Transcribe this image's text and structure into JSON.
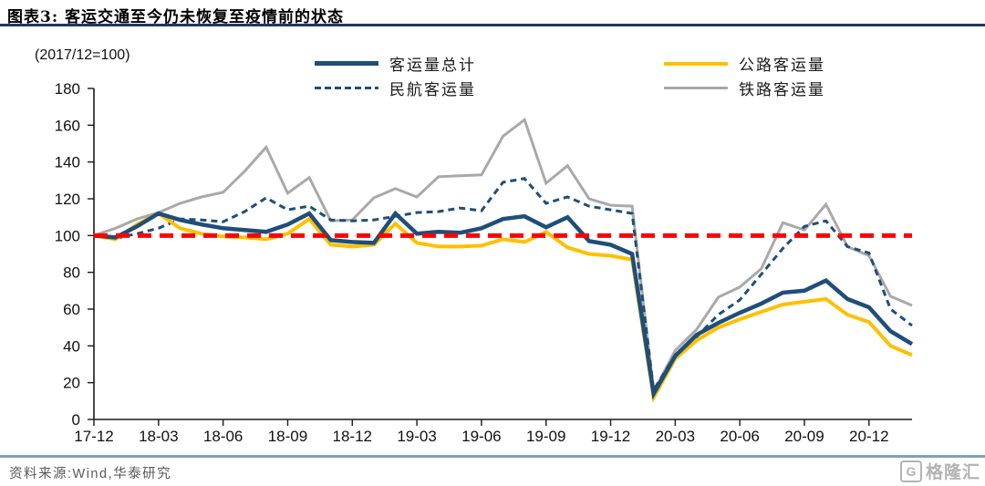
{
  "header": {
    "title": "图表3:  客运交通至今仍未恢复至疫情前的状态"
  },
  "chart_data": {
    "type": "line",
    "title": "客运交通至今仍未恢复至疫情前的状态",
    "index_note": "(2017/12=100)",
    "ylim": [
      0,
      180
    ],
    "y_ticks": [
      0,
      20,
      40,
      60,
      80,
      100,
      120,
      140,
      160,
      180
    ],
    "x_tick_labels": [
      "17-12",
      "18-03",
      "18-06",
      "18-09",
      "18-12",
      "19-03",
      "19-06",
      "19-09",
      "19-12",
      "20-03",
      "20-06",
      "20-09",
      "20-12"
    ],
    "grid": false,
    "legend_position": "top",
    "months": [
      "17-12",
      "18-01",
      "18-02",
      "18-03",
      "18-04",
      "18-05",
      "18-06",
      "18-07",
      "18-08",
      "18-09",
      "18-10",
      "18-11",
      "18-12",
      "19-01",
      "19-02",
      "19-03",
      "19-04",
      "19-05",
      "19-06",
      "19-07",
      "19-08",
      "19-09",
      "19-10",
      "19-11",
      "19-12",
      "20-01",
      "20-02",
      "20-03",
      "20-04",
      "20-05",
      "20-06",
      "20-07",
      "20-08",
      "20-09",
      "20-10",
      "20-11",
      "20-12",
      "21-01",
      "21-02"
    ],
    "reference_line": {
      "value": 100,
      "color": "#FF0000",
      "style": "dashed"
    },
    "series": [
      {
        "name": "客运量总计",
        "color": "#1F4E79",
        "style": "solid",
        "width": 4.5,
        "values": [
          100,
          99,
          105,
          112,
          108.5,
          106,
          104,
          103,
          102,
          106,
          112,
          97.5,
          96.5,
          96,
          112,
          101,
          102,
          101.5,
          104,
          109,
          110.5,
          104.5,
          110,
          97,
          95,
          90,
          14,
          34.5,
          46,
          52.5,
          58,
          63,
          69,
          70,
          75.5,
          65.5,
          61,
          48,
          41
        ]
      },
      {
        "name": "民航客运量",
        "color": "#1F4E79",
        "style": "dashed",
        "width": 3,
        "values": [
          100,
          98.5,
          101,
          104,
          109,
          108.5,
          107.5,
          113,
          120.5,
          114,
          116,
          108.5,
          108,
          108.5,
          110.5,
          112.5,
          113,
          115,
          113.5,
          129,
          131,
          117.5,
          121,
          116,
          114,
          112,
          16,
          35,
          45,
          57,
          65,
          79,
          93,
          105,
          108,
          94,
          90.5,
          60,
          51
        ]
      },
      {
        "name": "公路客运量",
        "color": "#FFC000",
        "style": "solid",
        "width": 4,
        "values": [
          100,
          98,
          106,
          112,
          104,
          101,
          99.5,
          99,
          98,
          101,
          109,
          95,
          94,
          95,
          106.5,
          96,
          94,
          94,
          94.5,
          98,
          96.5,
          102,
          93.5,
          90,
          89,
          87,
          12,
          33,
          43,
          50,
          54.5,
          58.5,
          62.5,
          64,
          65.5,
          57,
          53,
          40,
          35
        ]
      },
      {
        "name": "铁路客运量",
        "color": "#A9A9A9",
        "style": "solid",
        "width": 3,
        "values": [
          100,
          104,
          109,
          112.5,
          117.5,
          121,
          123.5,
          135,
          148,
          123,
          131.5,
          108,
          108.5,
          120.5,
          125.5,
          121,
          132,
          132.5,
          133,
          154,
          163,
          128.5,
          138,
          120,
          116.5,
          116,
          15,
          37.5,
          49,
          66.5,
          72,
          82,
          107,
          103,
          117,
          94,
          89,
          67,
          62
        ]
      }
    ]
  },
  "footer": {
    "source": "资料来源:Wind,华泰研究",
    "watermark_icon": "G",
    "watermark": "格隆汇"
  }
}
